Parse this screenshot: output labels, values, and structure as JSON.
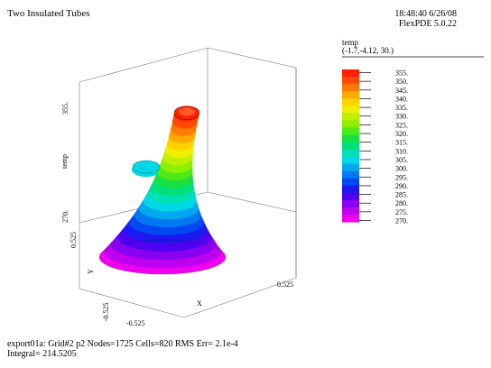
{
  "header": {
    "title": "Two Insulated Tubes",
    "timestamp": "18:48:40 6/26/08",
    "program": "FlexPDE 5.0.22"
  },
  "legend": {
    "variable": "temp",
    "point": "(-1.7,-4.12, 30.)",
    "colors": [
      "#ff2000",
      "#ff4a00",
      "#ff7a00",
      "#ffa800",
      "#ffd200",
      "#eef000",
      "#c0f000",
      "#8cf000",
      "#50e818",
      "#18e040",
      "#00e07a",
      "#00e0b4",
      "#00d8e8",
      "#00a8f0",
      "#0078f0",
      "#0048f0",
      "#1c18f0",
      "#5000f0",
      "#8800f0",
      "#bc00f0",
      "#f000f0"
    ]
  },
  "footer": {
    "line1": "export01a:  Grid#2  p2  Nodes=1725 Cells=820 RMS Err= 2.1e-4",
    "line2": "Integral=  214.5205"
  },
  "chart_data": {
    "type": "surface",
    "title": "Two Insulated Tubes",
    "xlabel": "X",
    "ylabel": "Y",
    "zlabel": "temp",
    "x_ticks": [
      "-0.525",
      "0.525"
    ],
    "y_ticks": [
      "-0.525",
      "0.525"
    ],
    "z_ticks": [
      "270.",
      "355."
    ],
    "zlim": [
      270,
      355
    ],
    "contour_levels": [
      355,
      350,
      345,
      340,
      335,
      330,
      325,
      320,
      315,
      310,
      305,
      300,
      295,
      290,
      285,
      280,
      275,
      270
    ],
    "contour_labels": [
      "355.",
      "350.",
      "345.",
      "340.",
      "335.",
      "330.",
      "325.",
      "320.",
      "315.",
      "310.",
      "305.",
      "300.",
      "295.",
      "290.",
      "285.",
      "280.",
      "275.",
      "270."
    ],
    "legend_location": "right"
  }
}
